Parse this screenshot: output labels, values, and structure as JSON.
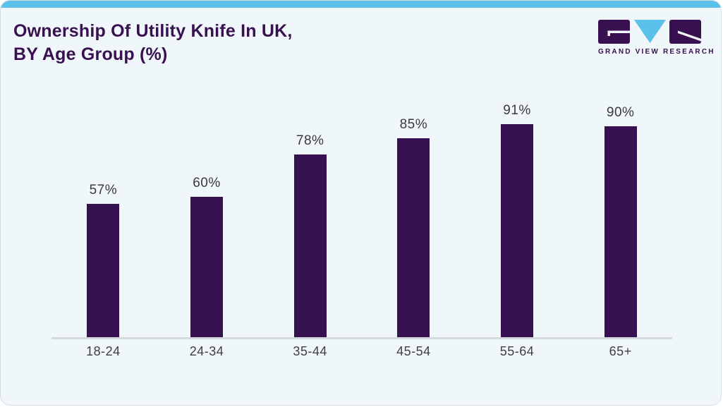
{
  "page": {
    "title_line1": "Ownership Of Utility Knife In UK,",
    "title_line2": "BY Age Group (%)"
  },
  "logo": {
    "name": "GRAND VIEW RESEARCH"
  },
  "chart_data": {
    "type": "bar",
    "title": "Ownership Of Utility Knife In UK, BY Age Group (%)",
    "categories": [
      "18-24",
      "24-34",
      "35-44",
      "45-54",
      "55-64",
      "65+"
    ],
    "values": [
      57,
      60,
      78,
      85,
      91,
      90
    ],
    "value_labels": [
      "57%",
      "60%",
      "78%",
      "85%",
      "91%",
      "90%"
    ],
    "xlabel": "",
    "ylabel": "",
    "ylim": [
      0,
      100
    ],
    "grid": false,
    "legend": false
  },
  "colors": {
    "bar_purple": "#371250",
    "title_purple": "#3a1150",
    "accent_blue": "#5bc0ea",
    "card_bg": "#f0f7fb",
    "axis_line": "#d4d7db",
    "label_gray": "#3a3a3a"
  }
}
